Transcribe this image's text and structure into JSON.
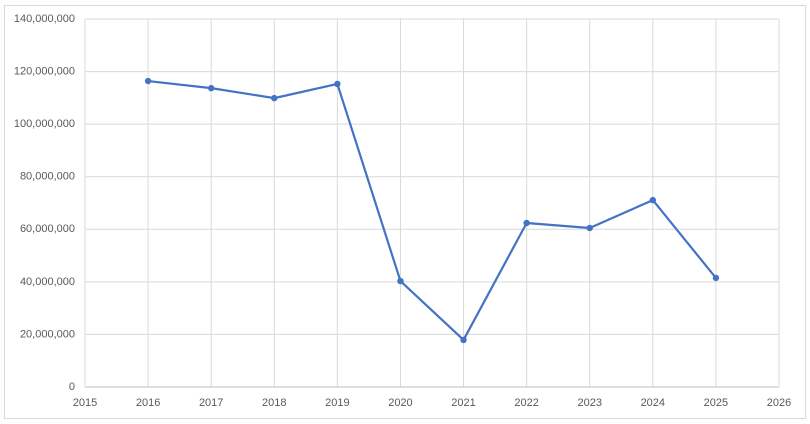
{
  "chart_data": {
    "type": "line",
    "x": [
      2016,
      2017,
      2018,
      2019,
      2020,
      2021,
      2022,
      2023,
      2024,
      2025
    ],
    "series": [
      {
        "color": "#4472c4",
        "values": [
          116400000,
          113700000,
          109900000,
          115300000,
          40300000,
          17900000,
          62400000,
          60500000,
          71100000,
          41500000
        ]
      }
    ],
    "xlim": [
      2015,
      2026
    ],
    "xticks": [
      2015,
      2016,
      2017,
      2018,
      2019,
      2020,
      2021,
      2022,
      2023,
      2024,
      2025,
      2026
    ],
    "ylim": [
      0,
      140000000
    ],
    "yticks": [
      0,
      {
        "value": 20000000,
        "label": "20,000,000"
      },
      {
        "value": 40000000,
        "label": "40,000,000"
      },
      {
        "value": 60000000,
        "label": "60,000,000"
      },
      {
        "value": 80000000,
        "label": "80,000,000"
      },
      {
        "value": 100000000,
        "label": "100,000,000"
      },
      {
        "value": 120000000,
        "label": "120,000,000"
      },
      {
        "value": 140000000,
        "label": "140,000,000"
      }
    ],
    "grid": true
  }
}
